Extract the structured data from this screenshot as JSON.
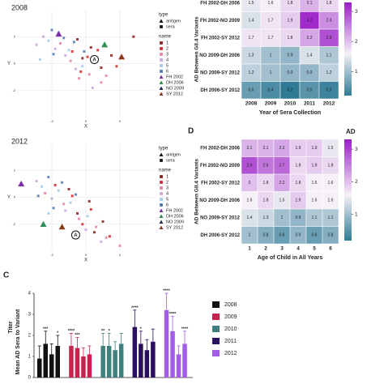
{
  "chart_data": [
    {
      "type": "scatter",
      "title": "2008",
      "x_label": "X",
      "y_label": "Y",
      "xlim": [
        -4,
        4
      ],
      "ylim": [
        -4,
        4
      ],
      "xticks": [
        -2,
        0,
        2
      ],
      "yticks": [
        -2,
        0,
        2
      ],
      "grid": true,
      "legend": {
        "type_title": "type",
        "types": [
          {
            "label": "antigen",
            "shape": "triangle"
          },
          {
            "label": "sera",
            "shape": "square"
          }
        ],
        "name_title": "name"
      },
      "series": [
        {
          "name": "1",
          "color": "#8b1a1a",
          "shape": "square",
          "x": [
            -0.5,
            0.3,
            1.5,
            2.8,
            0.9,
            -0.2
          ],
          "y": [
            1.8,
            1.2,
            0.6,
            2.0,
            -0.3,
            0.4
          ]
        },
        {
          "name": "2",
          "color": "#d6242c",
          "shape": "square",
          "x": [
            -0.8,
            0.1,
            0.7,
            1.8,
            -0.3
          ],
          "y": [
            0.9,
            0.5,
            1.0,
            -0.2,
            -0.6
          ]
        },
        {
          "name": "3",
          "color": "#e87fa0",
          "shape": "square",
          "x": [
            -1.5,
            -0.9,
            0.2,
            0.9,
            -0.4,
            1.2
          ],
          "y": [
            1.5,
            0.2,
            -0.8,
            -1.4,
            -1.1,
            -0.9
          ]
        },
        {
          "name": "4",
          "color": "#c9a6d9",
          "shape": "square",
          "x": [
            -2.5,
            -1.8,
            -1.2,
            -0.6,
            0.4,
            -2.9
          ],
          "y": [
            2.0,
            1.1,
            0.6,
            -0.4,
            -1.8,
            1.4
          ]
        },
        {
          "name": "5",
          "color": "#9ecae8",
          "shape": "square",
          "x": [
            -2.2,
            -1.6,
            -1.0,
            -0.2,
            -2.7
          ],
          "y": [
            1.7,
            2.3,
            1.0,
            -0.2,
            0.3
          ]
        },
        {
          "name": "6",
          "color": "#4a78b5",
          "shape": "square",
          "x": [
            -2.0,
            -1.3,
            -0.7,
            -1.9,
            -0.1
          ],
          "y": [
            2.5,
            1.9,
            1.6,
            0.7,
            0.9
          ]
        },
        {
          "name": "FH 2002",
          "color": "#7b2fa6",
          "shape": "triangle",
          "x": [
            -1.6
          ],
          "y": [
            2.2
          ]
        },
        {
          "name": "DH 2006",
          "color": "#2e8b57",
          "shape": "triangle",
          "x": [
            1.1
          ],
          "y": [
            1.4
          ]
        },
        {
          "name": "NO 2009",
          "color": "#1c2e5c",
          "shape": "triangle",
          "x": [
            0.5
          ],
          "y": [
            0.3
          ]
        },
        {
          "name": "SY 2012",
          "color": "#8b3a1a",
          "shape": "triangle",
          "x": [
            2.1
          ],
          "y": [
            0.5
          ]
        }
      ],
      "annotation": {
        "text": "A",
        "x": 0.5,
        "y": 0.3
      }
    },
    {
      "type": "heatmap",
      "x_label": "Year of Sera Collection",
      "y_label": "AD Between GII.4 Variants",
      "categories": [
        "2008",
        "2009",
        "2010",
        "2011",
        "2012"
      ],
      "rows": [
        "FH 2002-DH 2006",
        "FH 2002-NO 2009",
        "FH 2002-SY 2012",
        "NO 2009-DH 2006",
        "NO 2009-SY 2012",
        "DH 2006-SY 2012"
      ],
      "values": [
        [
          1.5,
          1.6,
          1.8,
          2.1,
          1.8
        ],
        [
          1.4,
          1.7,
          1.9,
          3.2,
          2.4
        ],
        [
          1.7,
          1.7,
          1.8,
          2.2,
          2.9
        ],
        [
          1.3,
          1.0,
          0.9,
          1.4,
          1.1
        ],
        [
          1.2,
          1.0,
          0.9,
          0.9,
          1.2
        ],
        [
          0.6,
          0.4,
          0.2,
          0.5,
          0.3
        ]
      ],
      "zlim": [
        0.2,
        3.3
      ],
      "zticks": [
        1,
        2,
        3
      ],
      "colors": [
        "#2f7b96",
        "#f5f1f7",
        "#9b1fc7"
      ]
    },
    {
      "type": "scatter",
      "title": "2012",
      "x_label": "X",
      "y_label": "Y",
      "xlim": [
        -4,
        4
      ],
      "ylim": [
        -4,
        4
      ],
      "xticks": [
        -2,
        0,
        2
      ],
      "yticks": [
        -2,
        0,
        2
      ],
      "grid": true,
      "legend": {
        "type_title": "type",
        "types": [
          {
            "label": "antigen",
            "shape": "triangle"
          },
          {
            "label": "sera",
            "shape": "square"
          }
        ],
        "name_title": "name"
      },
      "series": [
        {
          "name": "1",
          "color": "#8b1a1a",
          "shape": "square",
          "x": [
            -1.0,
            0.2,
            -0.5,
            1.0,
            0.5
          ],
          "y": [
            0.6,
            -0.3,
            -1.2,
            -1.8,
            -2.6
          ]
        },
        {
          "name": "2",
          "color": "#d6242c",
          "shape": "square",
          "x": [
            -1.8,
            -0.8,
            0.3,
            -0.2,
            1.4
          ],
          "y": [
            0.9,
            0.1,
            -0.9,
            -2.0,
            -2.9
          ]
        },
        {
          "name": "3",
          "color": "#e87fa0",
          "shape": "square",
          "x": [
            -2.4,
            -1.3,
            -0.4,
            0.6,
            1.2,
            2.0
          ],
          "y": [
            0.3,
            -0.5,
            -1.6,
            -2.2,
            -3.0,
            -3.6
          ]
        },
        {
          "name": "4",
          "color": "#c9a6d9",
          "shape": "square",
          "x": [
            -2.9,
            -2.0,
            -1.2,
            0.0,
            0.9
          ],
          "y": [
            1.2,
            -0.1,
            -1.0,
            -2.4,
            -3.3
          ]
        },
        {
          "name": "5",
          "color": "#9ecae8",
          "shape": "square",
          "x": [
            -2.6,
            -1.6,
            -0.9,
            -2.2,
            0.1
          ],
          "y": [
            0.8,
            0.5,
            -0.4,
            -1.2,
            -1.4
          ]
        },
        {
          "name": "6",
          "color": "#4a78b5",
          "shape": "square",
          "x": [
            -2.2,
            -1.4,
            -0.6,
            -1.9,
            -2.8
          ],
          "y": [
            1.5,
            1.1,
            0.2,
            -0.8,
            0.1
          ]
        },
        {
          "name": "FH 2002",
          "color": "#7b2fa6",
          "shape": "triangle",
          "x": [
            -3.8
          ],
          "y": [
            1.0
          ]
        },
        {
          "name": "DH 2006",
          "color": "#2e8b57",
          "shape": "triangle",
          "x": [
            -2.5
          ],
          "y": [
            -2.0
          ]
        },
        {
          "name": "NO 2009",
          "color": "#1c2e5c",
          "shape": "triangle",
          "x": [
            -0.6
          ],
          "y": [
            -2.8
          ]
        },
        {
          "name": "SY 2012",
          "color": "#8b3a1a",
          "shape": "triangle",
          "x": [
            -1.4
          ],
          "y": [
            -2.2
          ]
        }
      ],
      "annotation": {
        "text": "A",
        "x": -0.6,
        "y": -2.8
      }
    },
    {
      "type": "heatmap",
      "panel": "D",
      "x_label": "Age of Child in All Years",
      "y_label": "AD Between GII.4 Variants",
      "categories": [
        "1",
        "2",
        "3",
        "4",
        "5",
        "6"
      ],
      "rows": [
        "FH 2002-DH 2006",
        "FH 2002-NO 2009",
        "FH 2002-SY 2012",
        "NO 2009-DH 2006",
        "NO 2009-SY 2012",
        "DH 2006-SY 2012"
      ],
      "values": [
        [
          2.1,
          2.1,
          2.2,
          1.9,
          1.9,
          1.5
        ],
        [
          2.9,
          2.6,
          2.7,
          1.8,
          1.9,
          1.8
        ],
        [
          2.0,
          1.8,
          2.2,
          1.8,
          1.6,
          1.6
        ],
        [
          1.6,
          1.8,
          1.5,
          1.9,
          1.6,
          1.6
        ],
        [
          1.4,
          1.3,
          1.0,
          0.9,
          1.1,
          1.1
        ],
        [
          1.0,
          0.8,
          0.6,
          0.9,
          0.6,
          0.8
        ]
      ],
      "colorbar_title": "AD",
      "zlim": [
        0.2,
        3.3
      ],
      "zticks": [
        1,
        2,
        3
      ],
      "colors": [
        "#2f7b96",
        "#f5f1f7",
        "#9b1fc7"
      ]
    },
    {
      "type": "bar",
      "panel": "C",
      "y_label": "Mean AD Sera to Variant",
      "y_label2": "Titer",
      "ylim": [
        0,
        4
      ],
      "yticks": [
        0,
        1,
        2,
        3,
        4
      ],
      "series": [
        {
          "name": "2008",
          "color": "#111111",
          "values": [
            0.9,
            1.6,
            1.1,
            1.5
          ],
          "errors": [
            0.6,
            0.6,
            0.5,
            0.5
          ],
          "stars": [
            null,
            "***",
            null,
            "*"
          ]
        },
        {
          "name": "2009",
          "color": "#c8234f",
          "values": [
            1.5,
            1.4,
            1.0,
            1.1
          ],
          "errors": [
            0.6,
            0.5,
            0.4,
            0.4
          ],
          "stars": [
            "****",
            "***",
            null,
            null
          ]
        },
        {
          "name": "2010",
          "color": "#3f7f7f",
          "values": [
            1.5,
            1.5,
            1.3,
            1.6
          ],
          "errors": [
            0.6,
            0.6,
            0.4,
            0.5
          ],
          "stars": [
            "**",
            "*",
            null,
            null
          ]
        },
        {
          "name": "2011",
          "color": "#2a0f5e",
          "values": [
            2.4,
            1.6,
            1.3,
            1.7
          ],
          "errors": [
            0.8,
            0.6,
            0.5,
            0.6
          ],
          "stars": [
            "****",
            "*",
            null,
            null
          ]
        },
        {
          "name": "2012",
          "color": "#a35de6",
          "values": [
            3.2,
            2.2,
            1.1,
            1.6
          ],
          "errors": [
            0.8,
            0.7,
            0.4,
            0.6
          ],
          "stars": [
            "****",
            "****",
            null,
            "****"
          ]
        }
      ]
    }
  ]
}
